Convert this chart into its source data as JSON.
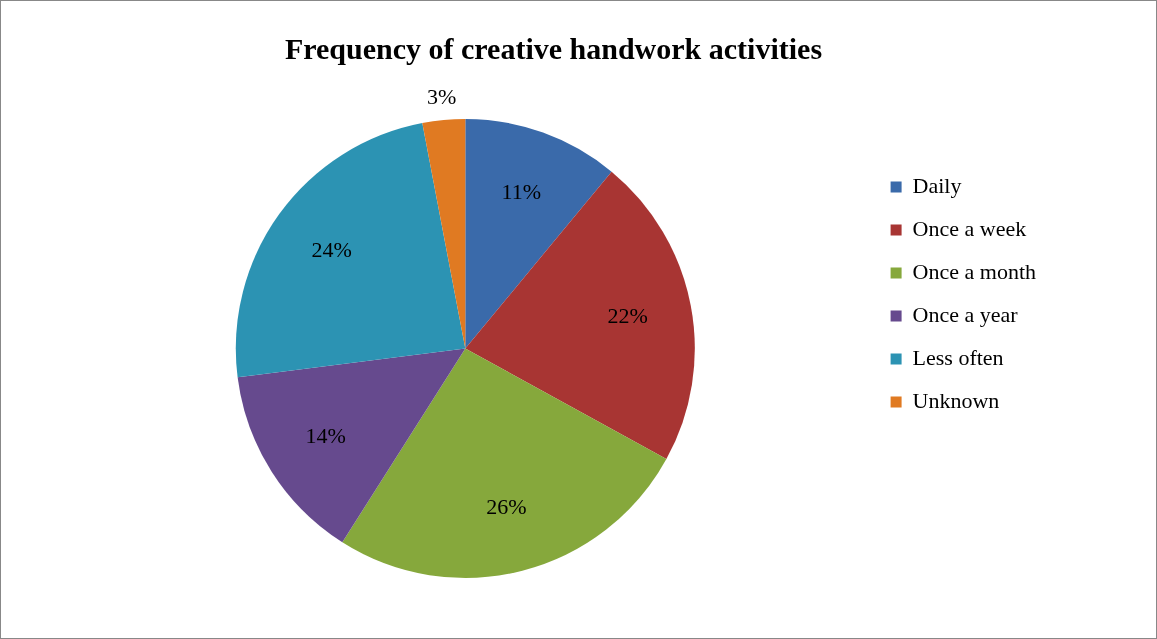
{
  "chart_data": {
    "type": "pie",
    "title": "Frequency of creative handwork activities",
    "categories": [
      "Daily",
      "Once a week",
      "Once a month",
      "Once a year",
      "Less often",
      "Unknown"
    ],
    "values": [
      11,
      22,
      26,
      14,
      24,
      3
    ],
    "colors": [
      "#3a6aaa",
      "#a83533",
      "#86a83c",
      "#664a8e",
      "#2c93b3",
      "#e07a22"
    ],
    "value_labels": [
      "11%",
      "22%",
      "26%",
      "14%",
      "24%",
      "3%"
    ],
    "legend": "right"
  }
}
